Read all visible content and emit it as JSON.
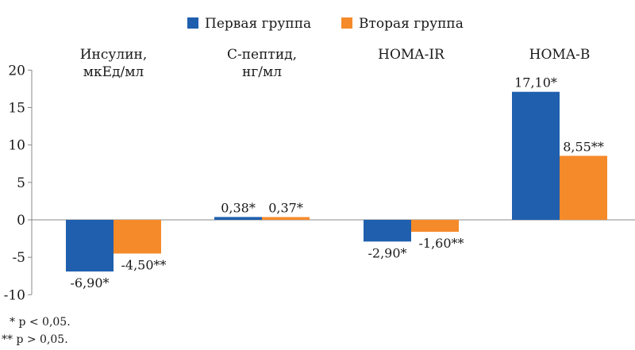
{
  "chart_data": {
    "type": "bar",
    "title": "",
    "xlabel": "",
    "ylabel": "",
    "ylim": [
      -10,
      20
    ],
    "yticks": [
      "20",
      "15",
      "10",
      "5",
      "0",
      "-5",
      "-10"
    ],
    "ytick_values": [
      20,
      15,
      10,
      5,
      0,
      -5,
      -10
    ],
    "grid": false,
    "legend_position": "top-center",
    "categories": [
      {
        "line1": "Инсулин,",
        "line2": "мкЕд/мл"
      },
      {
        "line1": "С-пептид,",
        "line2": "нг/мл"
      },
      {
        "line1": "HOMA-IR",
        "line2": ""
      },
      {
        "line1": "HOMA-B",
        "line2": ""
      }
    ],
    "series": [
      {
        "name": "Первая группа",
        "color": "#1f5fae",
        "values": [
          -6.9,
          0.38,
          -2.9,
          17.1
        ],
        "labels": [
          "-6,90*",
          "0,38*",
          "-2,90*",
          "17,10*"
        ]
      },
      {
        "name": "Вторая группа",
        "color": "#f58a2a",
        "values": [
          -4.5,
          0.37,
          -1.6,
          8.55
        ],
        "labels": [
          "-4,50**",
          "0,37*",
          "-1,60**",
          "8,55**"
        ]
      }
    ],
    "footnotes": [
      "* p < 0,05.",
      "** p > 0,05."
    ]
  }
}
